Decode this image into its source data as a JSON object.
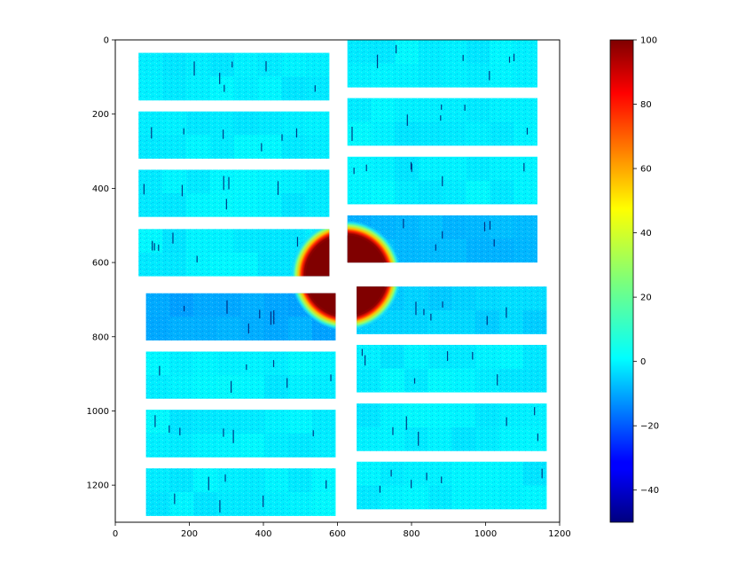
{
  "chart_data": {
    "type": "heatmap",
    "title": "",
    "xlabel": "",
    "ylabel": "",
    "xlim": [
      0,
      1200
    ],
    "ylim": [
      1300,
      0
    ],
    "x_ticks": [
      0,
      200,
      400,
      600,
      800,
      1000,
      1200
    ],
    "y_ticks": [
      0,
      200,
      400,
      600,
      800,
      1000,
      1200
    ],
    "x_tick_labels": [
      "0",
      "200",
      "400",
      "600",
      "800",
      "1000",
      "1200"
    ],
    "y_tick_labels": [
      "0",
      "200",
      "400",
      "600",
      "800",
      "1000",
      "1200"
    ],
    "colorbar": {
      "colormap": "jet",
      "min": -50,
      "max": 100,
      "ticks": [
        100,
        80,
        60,
        40,
        20,
        0,
        -20,
        -40
      ],
      "tick_labels": [
        "100",
        "80",
        "60",
        "40",
        "20",
        "0",
        "−20",
        "−40"
      ]
    },
    "panels": [
      {
        "x": [
          63,
          578
        ],
        "y": [
          35,
          163
        ],
        "level": 4
      },
      {
        "x": [
          63,
          578
        ],
        "y": [
          193,
          320
        ],
        "level": 4
      },
      {
        "x": [
          63,
          578
        ],
        "y": [
          350,
          477
        ],
        "level": 4
      },
      {
        "x": [
          63,
          578
        ],
        "y": [
          510,
          637
        ],
        "level": 4
      },
      {
        "x": [
          83,
          595
        ],
        "y": [
          683,
          810
        ],
        "level": -6
      },
      {
        "x": [
          83,
          595
        ],
        "y": [
          840,
          967
        ],
        "level": 4
      },
      {
        "x": [
          83,
          595
        ],
        "y": [
          997,
          1125
        ],
        "level": 4
      },
      {
        "x": [
          83,
          595
        ],
        "y": [
          1155,
          1283
        ],
        "level": 4
      },
      {
        "x": [
          627,
          1140
        ],
        "y": [
          0,
          128
        ],
        "level": 4
      },
      {
        "x": [
          627,
          1140
        ],
        "y": [
          157,
          285
        ],
        "level": 4
      },
      {
        "x": [
          627,
          1140
        ],
        "y": [
          315,
          443
        ],
        "level": 4
      },
      {
        "x": [
          627,
          1140
        ],
        "y": [
          473,
          600
        ],
        "level": -4
      },
      {
        "x": [
          652,
          1165
        ],
        "y": [
          665,
          793
        ],
        "level": 0
      },
      {
        "x": [
          652,
          1165
        ],
        "y": [
          822,
          950
        ],
        "level": 4
      },
      {
        "x": [
          652,
          1165
        ],
        "y": [
          980,
          1108
        ],
        "level": 4
      },
      {
        "x": [
          652,
          1165
        ],
        "y": [
          1137,
          1265
        ],
        "level": 4
      }
    ],
    "hotspot": {
      "cx": 623,
      "cy": 635,
      "r_saturated": 113,
      "r_halo": 150,
      "value": 100
    }
  }
}
